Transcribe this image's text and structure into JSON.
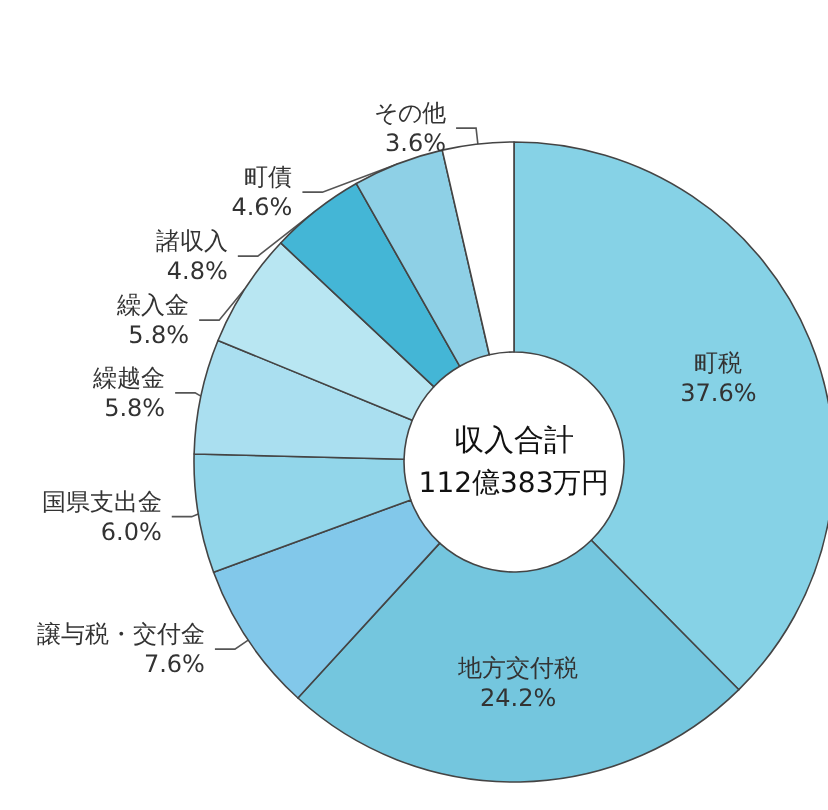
{
  "chart_data": {
    "type": "donut",
    "title": "収入合計",
    "subtitle": "112億383万円",
    "categories": [
      "町税",
      "地方交付税",
      "譲与税・交付金",
      "国県支出金",
      "繰越金",
      "繰入金",
      "諸収入",
      "町債",
      "その他"
    ],
    "values": [
      37.6,
      24.2,
      7.6,
      6.0,
      5.8,
      5.8,
      4.8,
      4.6,
      3.6
    ],
    "colors": [
      "#86d2e6",
      "#74c6de",
      "#82c8ea",
      "#92d6ea",
      "#aadff0",
      "#b8e6f2",
      "#44b6d6",
      "#8ed0e6",
      "#ffffff"
    ],
    "value_labels": [
      "37.6%",
      "24.2%",
      "7.6%",
      "6.0%",
      "5.8%",
      "5.8%",
      "4.8%",
      "4.6%",
      "3.6%"
    ],
    "legend": false
  }
}
